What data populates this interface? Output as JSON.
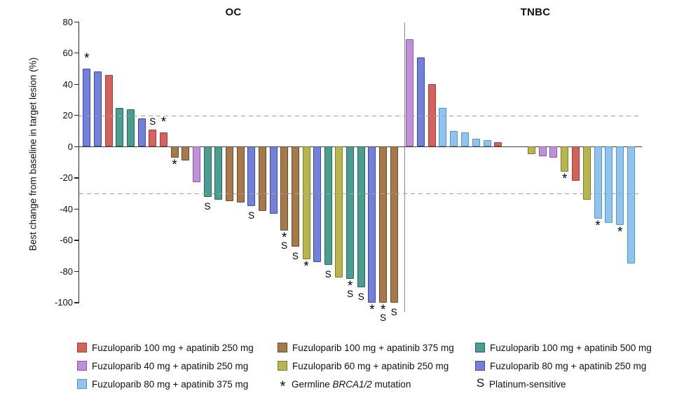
{
  "chart_data": {
    "type": "bar",
    "subtype": "waterfall",
    "title": "",
    "ylabel": "Best change from baseline in target lesion (%)",
    "ylim": [
      -100,
      80
    ],
    "yticks": [
      80,
      60,
      40,
      20,
      0,
      -20,
      -40,
      -60,
      -80,
      -100
    ],
    "reference_lines": [
      20,
      -30
    ],
    "grid": false,
    "groups": {
      "f100a250": {
        "label": "Fuzuloparib 100 mg + apatinib 250 mg",
        "fill": "#D4635D",
        "stroke": "#A93B37"
      },
      "f40a250": {
        "label": "Fuzuloparib 40 mg + apatinib 250 mg",
        "fill": "#BE90D8",
        "stroke": "#9156BC"
      },
      "f80a375": {
        "label": "Fuzuloparib 80 mg + apatinib 375 mg",
        "fill": "#90C3EE",
        "stroke": "#4C95D5"
      },
      "f100a375": {
        "label": "Fuzuloparib 100 mg + apatinib 375 mg",
        "fill": "#A6794C",
        "stroke": "#6F4B20"
      },
      "f60a250": {
        "label": "Fuzuloparib 60 mg + apatinib 250 mg",
        "fill": "#B7B54D",
        "stroke": "#7F7D21"
      },
      "f100a500": {
        "label": "Fuzuloparib 100 mg + apatinib 500 mg",
        "fill": "#4B9D90",
        "stroke": "#1F6A5E"
      },
      "f80a250": {
        "label": "Fuzuloparib 80 mg + apatinib 250 mg",
        "fill": "#7481D9",
        "stroke": "#3A47AE"
      }
    },
    "markers": {
      "brca": {
        "glyph": "*",
        "label_parts": [
          {
            "text": "Germline "
          },
          {
            "text": "BRCA1/2",
            "italic": true
          },
          {
            "text": " mutation"
          }
        ]
      },
      "ps": {
        "glyph": "S",
        "label_parts": [
          {
            "text": "Platinum-sensitive"
          }
        ]
      }
    },
    "panels": [
      {
        "title": "OC",
        "bars": [
          {
            "group": "f80a250",
            "value": 50,
            "markers": [
              "brca"
            ]
          },
          {
            "group": "f80a250",
            "value": 48
          },
          {
            "group": "f100a250",
            "value": 46
          },
          {
            "group": "f100a500",
            "value": 25
          },
          {
            "group": "f100a500",
            "value": 24
          },
          {
            "group": "f80a250",
            "value": 18
          },
          {
            "group": "f100a250",
            "value": 11,
            "markers": [
              "ps"
            ]
          },
          {
            "group": "f100a250",
            "value": 9,
            "markers": [
              "brca"
            ]
          },
          {
            "group": "f100a375",
            "value": -7,
            "markers": [
              "brca"
            ]
          },
          {
            "group": "f100a375",
            "value": -9
          },
          {
            "group": "f40a250",
            "value": -23
          },
          {
            "group": "f100a500",
            "value": -32,
            "markers": [
              "ps"
            ]
          },
          {
            "group": "f100a500",
            "value": -34
          },
          {
            "group": "f100a375",
            "value": -35
          },
          {
            "group": "f100a375",
            "value": -36
          },
          {
            "group": "f80a250",
            "value": -38,
            "markers": [
              "ps"
            ]
          },
          {
            "group": "f100a375",
            "value": -41
          },
          {
            "group": "f80a250",
            "value": -43
          },
          {
            "group": "f100a375",
            "value": -54,
            "markers": [
              "brca",
              "ps"
            ]
          },
          {
            "group": "f100a375",
            "value": -64,
            "markers": [
              "ps"
            ]
          },
          {
            "group": "f60a250",
            "value": -72,
            "markers": [
              "brca"
            ]
          },
          {
            "group": "f80a250",
            "value": -74
          },
          {
            "group": "f100a500",
            "value": -76,
            "markers": [
              "ps"
            ]
          },
          {
            "group": "f60a250",
            "value": -84
          },
          {
            "group": "f100a500",
            "value": -85,
            "markers": [
              "brca",
              "ps"
            ]
          },
          {
            "group": "f100a500",
            "value": -90,
            "markers": [
              "ps"
            ]
          },
          {
            "group": "f80a250",
            "value": -100,
            "markers": [
              "brca"
            ]
          },
          {
            "group": "f100a375",
            "value": -100,
            "markers": [
              "brca",
              "ps"
            ]
          },
          {
            "group": "f100a375",
            "value": -100,
            "markers": [
              "ps"
            ]
          }
        ]
      },
      {
        "title": "TNBC",
        "bars": [
          {
            "group": "f40a250",
            "value": 69,
            "slot": 0
          },
          {
            "group": "f80a250",
            "value": 57,
            "slot": 1
          },
          {
            "group": "f100a250",
            "value": 40,
            "slot": 2
          },
          {
            "group": "f80a375",
            "value": 25,
            "slot": 3
          },
          {
            "group": "f80a375",
            "value": 10,
            "slot": 4
          },
          {
            "group": "f80a375",
            "value": 9,
            "slot": 5
          },
          {
            "group": "f80a375",
            "value": 5,
            "slot": 6
          },
          {
            "group": "f80a375",
            "value": 4,
            "slot": 7
          },
          {
            "group": "f100a250",
            "value": 3,
            "slot": 8
          },
          {
            "group": "f60a250",
            "value": -5,
            "slot": 11
          },
          {
            "group": "f40a250",
            "value": -6,
            "slot": 12
          },
          {
            "group": "f40a250",
            "value": -7,
            "slot": 13
          },
          {
            "group": "f60a250",
            "value": -16,
            "slot": 14,
            "markers": [
              "brca"
            ]
          },
          {
            "group": "f100a250",
            "value": -22,
            "slot": 15
          },
          {
            "group": "f60a250",
            "value": -34,
            "slot": 16
          },
          {
            "group": "f80a375",
            "value": -46,
            "slot": 17,
            "markers": [
              "brca"
            ]
          },
          {
            "group": "f80a375",
            "value": -49,
            "slot": 18
          },
          {
            "group": "f80a375",
            "value": -50,
            "slot": 19,
            "markers": [
              "brca"
            ]
          },
          {
            "group": "f80a375",
            "value": -75,
            "slot": 20
          }
        ]
      }
    ]
  },
  "legend": {
    "rows": [
      [
        "f100a250",
        "f100a375",
        "f100a500"
      ],
      [
        "f40a250",
        "f60a250",
        "f80a250"
      ],
      [
        "f80a375",
        "marker:brca",
        "marker:ps"
      ]
    ]
  }
}
